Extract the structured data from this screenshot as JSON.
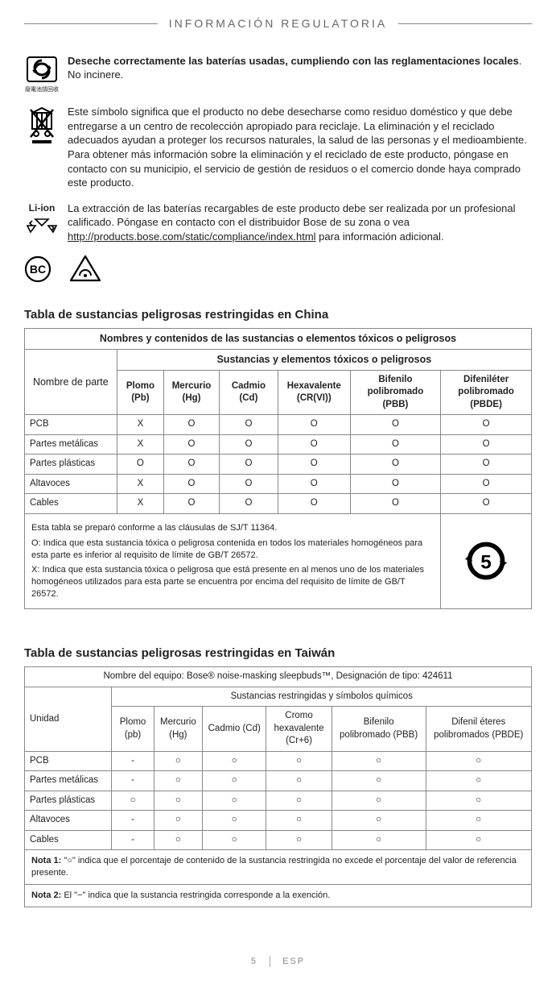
{
  "header": "INFORMACIÓN REGULATORIA",
  "block1": {
    "bold": "Deseche correctamente las baterías usadas, cumpliendo con las reglamentaciones locales",
    "rest": ". No incinere.",
    "caption": "廢電池請回收"
  },
  "block2": "Este símbolo significa que el producto no debe desecharse como residuo doméstico y que debe entregarse a un centro de recolección apropiado para reciclaje. La eliminación y el reciclado adecuados ayudan a proteger los recursos naturales, la salud de las personas y el medioambiente. Para obtener más información sobre la eliminación y el reciclado de este producto, póngase en contacto con su municipio, el servicio de gestión de residuos o el comercio donde haya comprado este producto.",
  "block3": {
    "before": "La extracción de las baterías recargables de este producto debe ser realizada por un profesional calificado. Póngase en contacto con el distribuidor Bose de su zona o vea ",
    "link": "http://products.bose.com/static/compliance/index.html",
    "after": " para información adicional.",
    "label": "Li-ion"
  },
  "china": {
    "title": "Tabla de sustancias peligrosas restringidas en China",
    "header_main": "Nombres y contenidos de las sustancias o elementos tóxicos o peligrosos",
    "header_sub": "Sustancias y elementos tóxicos o peligrosos",
    "col_part": "Nombre de parte",
    "cols": [
      {
        "t": "Plomo",
        "s": "(Pb)"
      },
      {
        "t": "Mercurio",
        "s": "(Hg)"
      },
      {
        "t": "Cadmio",
        "s": "(Cd)"
      },
      {
        "t": "Hexavalente",
        "s": "(CR(VI))"
      },
      {
        "t": "Bifenilo polibromado",
        "s": "(PBB)"
      },
      {
        "t": "Difeniléter polibromado",
        "s": "(PBDE)"
      }
    ],
    "rows": [
      {
        "n": "PCB",
        "v": [
          "X",
          "O",
          "O",
          "O",
          "O",
          "O"
        ]
      },
      {
        "n": "Partes metálicas",
        "v": [
          "X",
          "O",
          "O",
          "O",
          "O",
          "O"
        ]
      },
      {
        "n": "Partes plásticas",
        "v": [
          "O",
          "O",
          "O",
          "O",
          "O",
          "O"
        ]
      },
      {
        "n": "Altavoces",
        "v": [
          "X",
          "O",
          "O",
          "O",
          "O",
          "O"
        ]
      },
      {
        "n": "Cables",
        "v": [
          "X",
          "O",
          "O",
          "O",
          "O",
          "O"
        ]
      }
    ],
    "foot1": "Esta tabla se preparó conforme a las cláusulas de SJ/T 11364.",
    "foot2": "O: Indica que esta sustancia tóxica o peligrosa contenida en todos los materiales homogéneos para esta parte es inferior al requisito de límite de GB/T 26572.",
    "foot3": "X: Indica que esta sustancia tóxica o peligrosa que está presente en al menos uno de los materiales homogéneos utilizados para esta parte se encuentra por encima del requisito de límite de GB/T 26572.",
    "epup": "5"
  },
  "taiwan": {
    "title": "Tabla de sustancias peligrosas restringidas en Taiwán",
    "equip": "Nombre del equipo: Bose® noise-masking sleepbuds™, Designación de tipo: 424611",
    "header_sub": "Sustancias restringidas y símbolos químicos",
    "col_part": "Unidad",
    "cols": [
      {
        "t": "Plomo",
        "s": "(pb)"
      },
      {
        "t": "Mercurio",
        "s": "(Hg)"
      },
      {
        "t": "Cadmio (Cd)",
        "s": ""
      },
      {
        "t": "Cromo hexavalente",
        "s": "(Cr+6)"
      },
      {
        "t": "Bifenilo polibromado (PBB)",
        "s": ""
      },
      {
        "t": "Difenil éteres polibromados (PBDE)",
        "s": ""
      }
    ],
    "rows": [
      {
        "n": "PCB",
        "v": [
          "-",
          "○",
          "○",
          "○",
          "○",
          "○"
        ]
      },
      {
        "n": "Partes metálicas",
        "v": [
          "-",
          "○",
          "○",
          "○",
          "○",
          "○"
        ]
      },
      {
        "n": "Partes plásticas",
        "v": [
          "○",
          "○",
          "○",
          "○",
          "○",
          "○"
        ]
      },
      {
        "n": "Altavoces",
        "v": [
          "-",
          "○",
          "○",
          "○",
          "○",
          "○"
        ]
      },
      {
        "n": "Cables",
        "v": [
          "-",
          "○",
          "○",
          "○",
          "○",
          "○"
        ]
      }
    ],
    "note1_label": "Nota 1:",
    "note1": " \"○\" indica que el porcentaje de contenido de la sustancia restringida no excede el porcentaje del valor de referencia presente.",
    "note2_label": "Nota 2:",
    "note2": " El \"−\" indica que la sustancia restringida corresponde a la exención."
  },
  "footer": {
    "page": "5",
    "lang": "ESP"
  }
}
